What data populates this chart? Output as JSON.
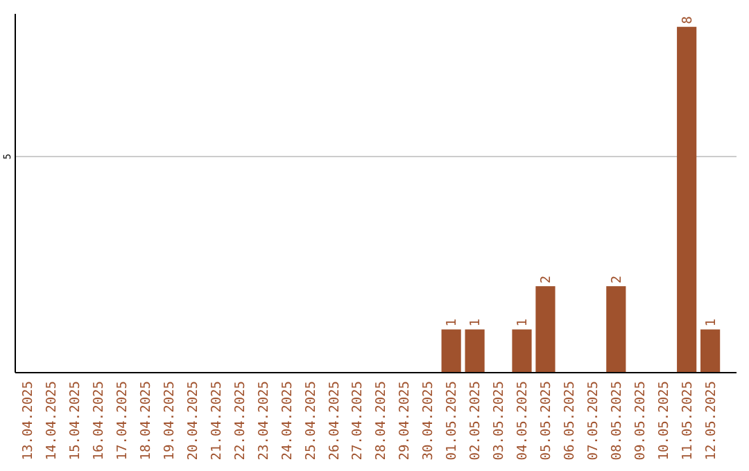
{
  "chart_data": {
    "type": "bar",
    "ylim": [
      0,
      8.3
    ],
    "categories": [
      "13.04.2025",
      "14.04.2025",
      "15.04.2025",
      "16.04.2025",
      "17.04.2025",
      "18.04.2025",
      "19.04.2025",
      "20.04.2025",
      "21.04.2025",
      "22.04.2025",
      "23.04.2025",
      "24.04.2025",
      "25.04.2025",
      "26.04.2025",
      "27.04.2025",
      "28.04.2025",
      "29.04.2025",
      "30.04.2025",
      "01.05.2025",
      "02.05.2025",
      "03.05.2025",
      "04.05.2025",
      "05.05.2025",
      "06.05.2025",
      "07.05.2025",
      "08.05.2025",
      "09.05.2025",
      "10.05.2025",
      "11.05.2025",
      "12.05.2025"
    ],
    "values": [
      null,
      null,
      null,
      null,
      null,
      null,
      null,
      null,
      null,
      null,
      null,
      null,
      null,
      null,
      null,
      null,
      null,
      null,
      1,
      1,
      null,
      1,
      2,
      null,
      null,
      2,
      null,
      null,
      8,
      1
    ],
    "data_labels": true,
    "yticks": [
      5
    ],
    "grid": "y",
    "color": "#a0522d"
  }
}
